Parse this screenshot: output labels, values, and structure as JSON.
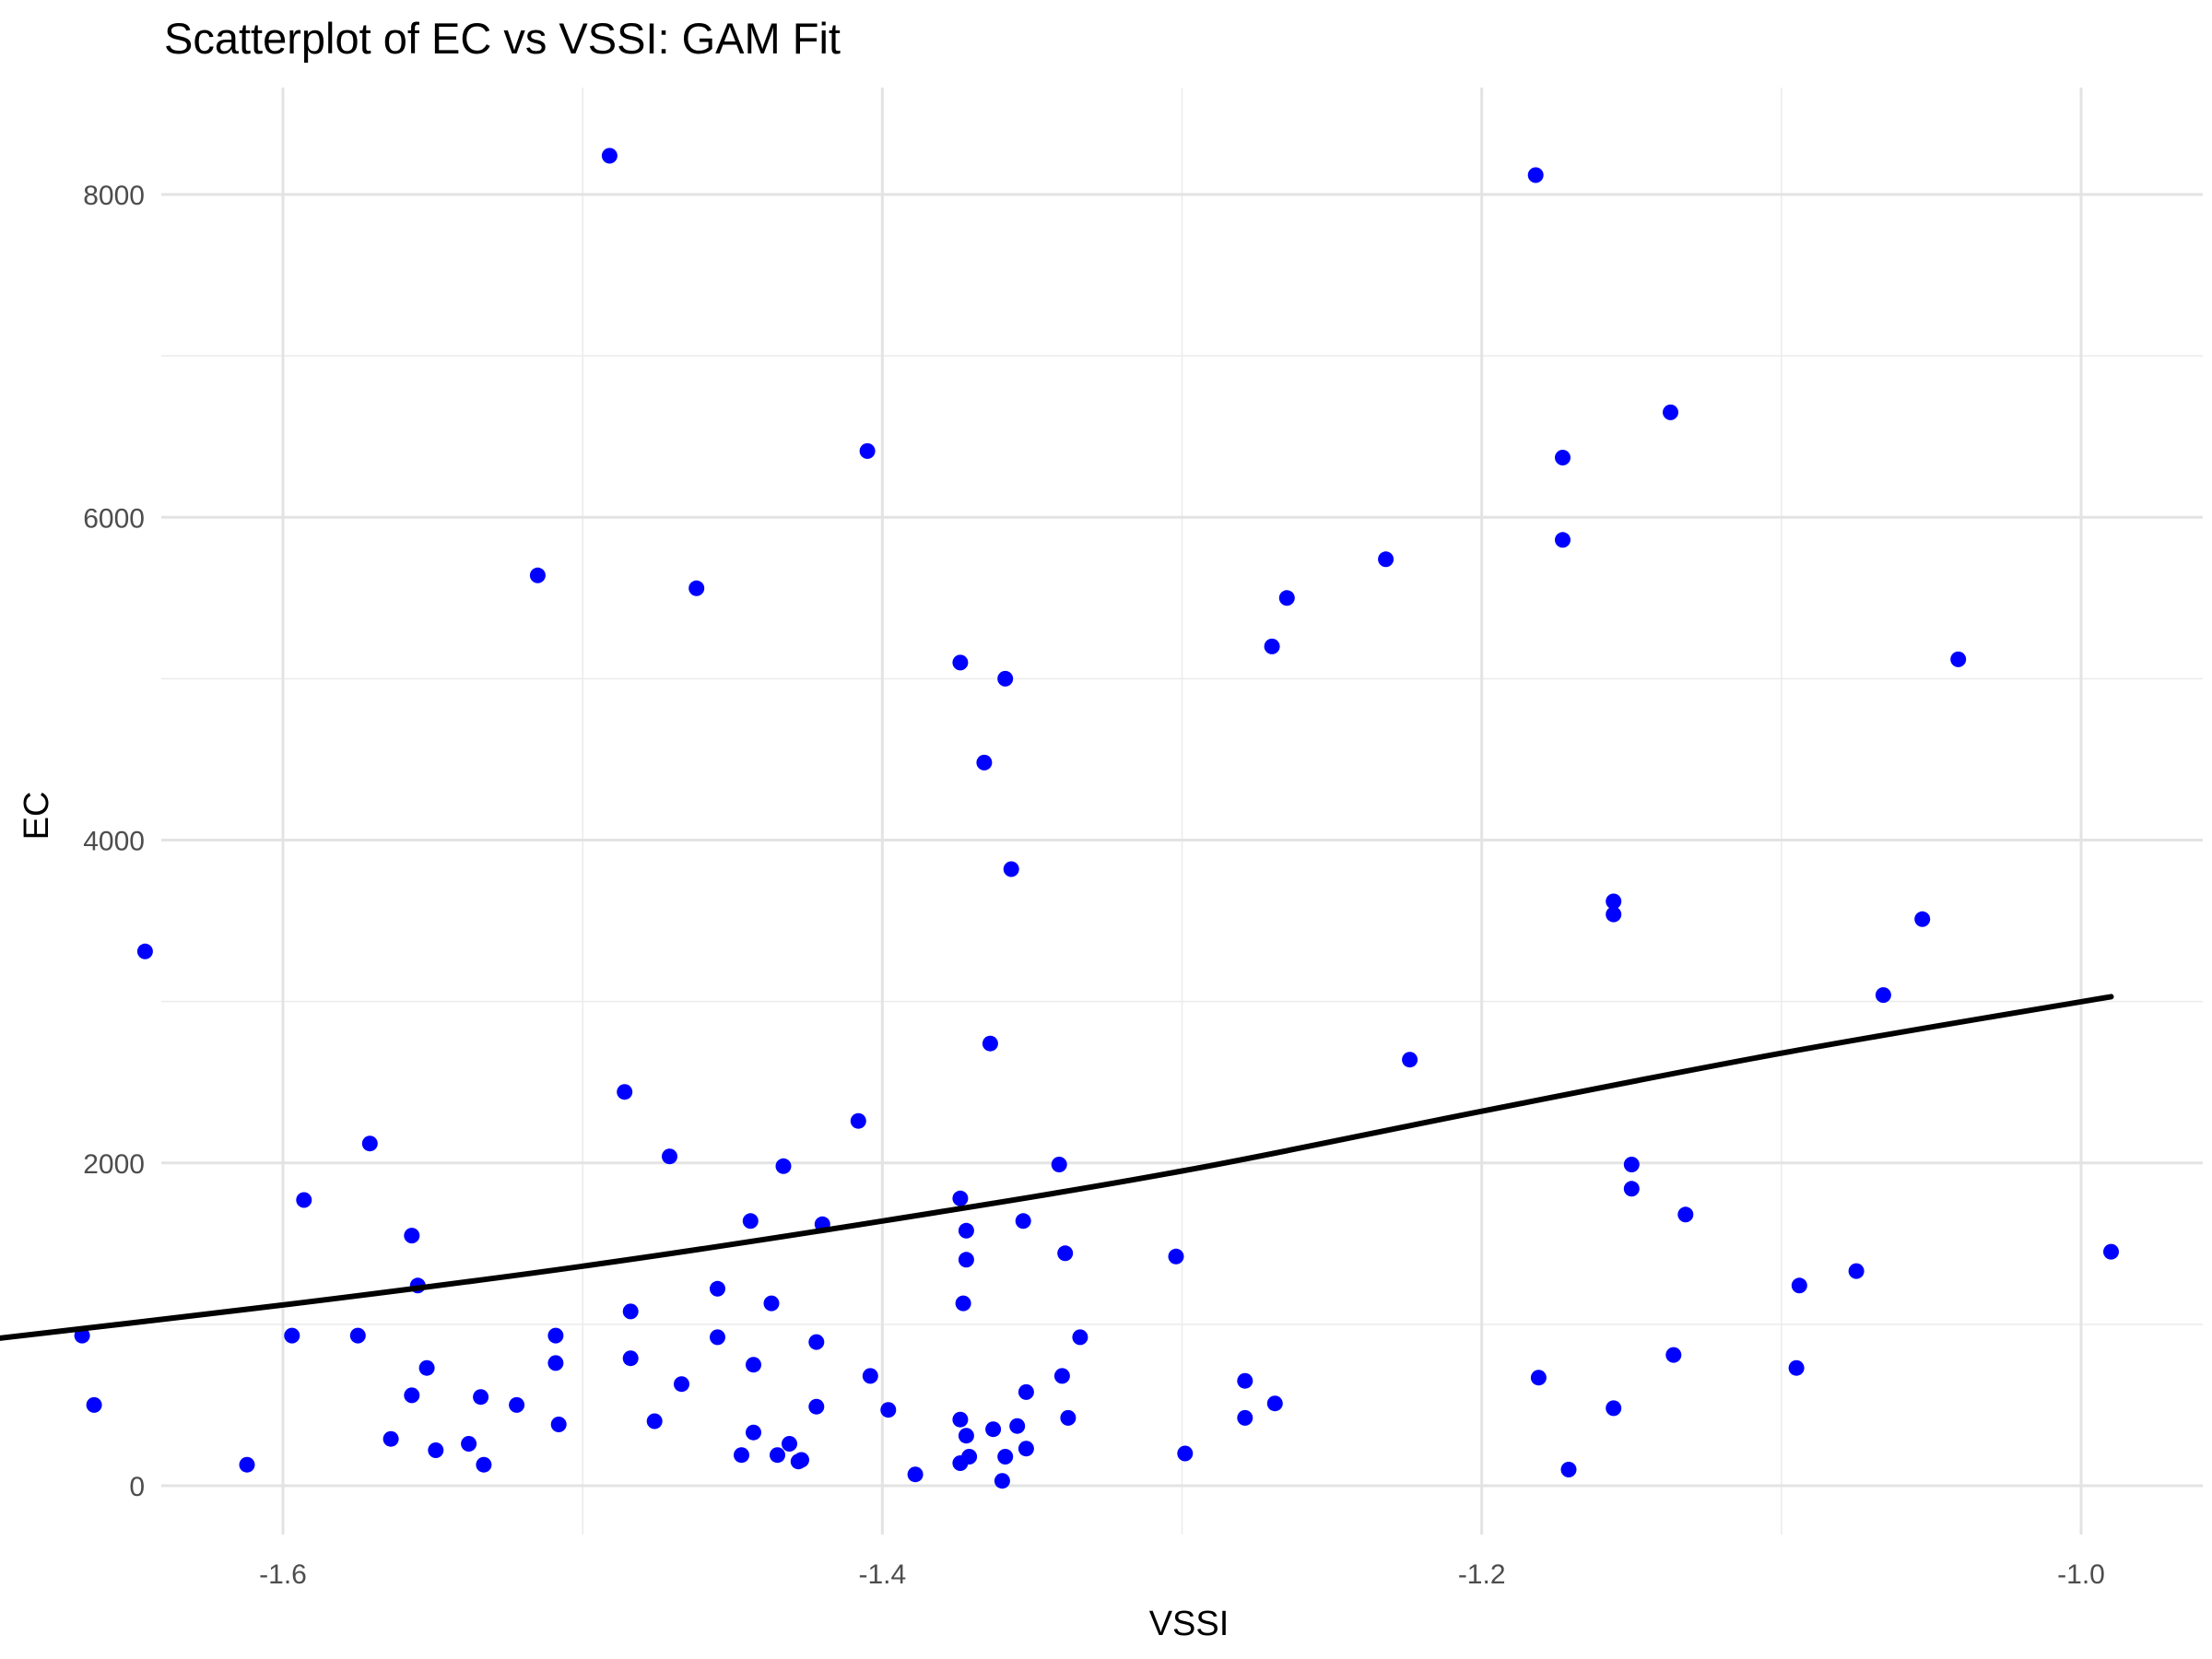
{
  "chart_data": {
    "type": "scatter",
    "title": "Scatterplot of EC vs VSSI: GAM Fit",
    "xlabel": "VSSI",
    "ylabel": "EC",
    "xlim": [
      -1.755,
      -0.955
    ],
    "ylim": [
      -400,
      8650
    ],
    "x_ticks": [
      -1.6,
      -1.4,
      -1.2,
      -1.0
    ],
    "x_tick_labels": [
      "-1.6",
      "-1.4",
      "-1.2",
      "-1.0"
    ],
    "y_ticks": [
      0,
      2000,
      4000,
      6000,
      8000
    ],
    "y_tick_labels": [
      "0",
      "2000",
      "4000",
      "6000",
      "8000"
    ],
    "grid": true,
    "point_color": "#0000ff",
    "fit_color": "#000000",
    "points": [
      [
        -1.491,
        8240
      ],
      [
        -1.182,
        8120
      ],
      [
        -1.137,
        6650
      ],
      [
        -1.405,
        6410
      ],
      [
        -1.173,
        6370
      ],
      [
        -1.173,
        5860
      ],
      [
        -1.232,
        5740
      ],
      [
        -1.515,
        5640
      ],
      [
        -1.462,
        5560
      ],
      [
        -1.265,
        5500
      ],
      [
        -1.27,
        5200
      ],
      [
        -1.041,
        5120
      ],
      [
        -1.374,
        5100
      ],
      [
        -1.359,
        5000
      ],
      [
        -1.366,
        4480
      ],
      [
        -1.357,
        3820
      ],
      [
        -1.156,
        3620
      ],
      [
        -1.156,
        3540
      ],
      [
        -1.053,
        3510
      ],
      [
        -1.646,
        3310
      ],
      [
        -1.066,
        3040
      ],
      [
        -1.364,
        2740
      ],
      [
        -1.224,
        2640
      ],
      [
        -1.486,
        2440
      ],
      [
        -1.408,
        2260
      ],
      [
        -1.571,
        2120
      ],
      [
        -1.471,
        2040
      ],
      [
        -1.15,
        1990
      ],
      [
        -1.341,
        1990
      ],
      [
        -1.433,
        1980
      ],
      [
        -1.15,
        1840
      ],
      [
        -1.374,
        1780
      ],
      [
        -1.593,
        1770
      ],
      [
        -1.132,
        1680
      ],
      [
        -1.444,
        1640
      ],
      [
        -1.353,
        1640
      ],
      [
        -1.42,
        1620
      ],
      [
        -1.372,
        1580
      ],
      [
        -1.557,
        1550
      ],
      [
        -0.99,
        1450
      ],
      [
        -1.339,
        1440
      ],
      [
        -1.302,
        1420
      ],
      [
        -1.372,
        1400
      ],
      [
        -1.715,
        1340
      ],
      [
        -1.075,
        1330
      ],
      [
        -1.094,
        1240
      ],
      [
        -1.555,
        1240
      ],
      [
        -1.455,
        1220
      ],
      [
        -1.437,
        1130
      ],
      [
        -1.373,
        1130
      ],
      [
        -1.484,
        1080
      ],
      [
        -1.667,
        930
      ],
      [
        -1.597,
        930
      ],
      [
        -1.575,
        930
      ],
      [
        -1.509,
        930
      ],
      [
        -1.455,
        920
      ],
      [
        -1.334,
        920
      ],
      [
        -1.422,
        890
      ],
      [
        -1.136,
        810
      ],
      [
        -1.484,
        790
      ],
      [
        -1.509,
        760
      ],
      [
        -1.443,
        750
      ],
      [
        -1.552,
        730
      ],
      [
        -1.095,
        730
      ],
      [
        -1.404,
        680
      ],
      [
        -1.34,
        680
      ],
      [
        -1.181,
        670
      ],
      [
        -1.279,
        650
      ],
      [
        -1.467,
        630
      ],
      [
        -1.352,
        580
      ],
      [
        -1.557,
        560
      ],
      [
        -1.534,
        550
      ],
      [
        -1.663,
        500
      ],
      [
        -1.522,
        500
      ],
      [
        -1.269,
        510
      ],
      [
        -1.156,
        480
      ],
      [
        -1.422,
        490
      ],
      [
        -1.398,
        470
      ],
      [
        -1.476,
        400
      ],
      [
        -1.508,
        380
      ],
      [
        -1.338,
        420
      ],
      [
        -1.279,
        420
      ],
      [
        -1.374,
        410
      ],
      [
        -1.355,
        370
      ],
      [
        -1.363,
        350
      ],
      [
        -1.443,
        330
      ],
      [
        -1.372,
        310
      ],
      [
        -1.564,
        290
      ],
      [
        -1.431,
        260
      ],
      [
        -1.538,
        260
      ],
      [
        -1.352,
        230
      ],
      [
        -1.549,
        220
      ],
      [
        -1.299,
        200
      ],
      [
        -1.447,
        190
      ],
      [
        -1.435,
        190
      ],
      [
        -1.371,
        180
      ],
      [
        -1.359,
        180
      ],
      [
        -1.427,
        160
      ],
      [
        -1.428,
        150
      ],
      [
        -1.374,
        140
      ],
      [
        -1.612,
        130
      ],
      [
        -1.533,
        130
      ],
      [
        -1.171,
        100
      ],
      [
        -1.389,
        70
      ],
      [
        -1.36,
        30
      ]
    ],
    "fit_curve": [
      [
        -1.715,
        870
      ],
      [
        -1.6,
        1120
      ],
      [
        -1.5,
        1360
      ],
      [
        -1.4,
        1640
      ],
      [
        -1.3,
        1950
      ],
      [
        -1.2,
        2320
      ],
      [
        -1.1,
        2680
      ],
      [
        -0.99,
        3030
      ]
    ]
  }
}
